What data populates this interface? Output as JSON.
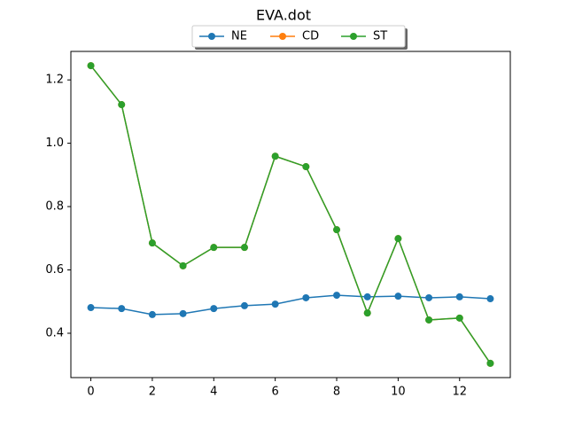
{
  "chart_data": {
    "type": "line",
    "title": "EVA.dot",
    "x": [
      0,
      1,
      2,
      3,
      4,
      5,
      6,
      7,
      8,
      9,
      10,
      11,
      12,
      13
    ],
    "series": [
      {
        "name": "NE",
        "color": "#1f77b4",
        "values": [
          0.481,
          0.478,
          0.459,
          0.462,
          0.478,
          0.487,
          0.492,
          0.512,
          0.52,
          0.515,
          0.517,
          0.512,
          0.515,
          0.509
        ]
      },
      {
        "name": "CD",
        "color": "#ff7f0e",
        "values": [
          1.245,
          1.122,
          0.685,
          0.613,
          0.671,
          0.671,
          0.959,
          0.926,
          0.727,
          0.464,
          0.699,
          0.442,
          0.448,
          0.305
        ]
      },
      {
        "name": "ST",
        "color": "#2ca02c",
        "values": [
          1.245,
          1.122,
          0.685,
          0.613,
          0.671,
          0.671,
          0.959,
          0.926,
          0.727,
          0.464,
          0.699,
          0.442,
          0.448,
          0.305
        ]
      }
    ],
    "xlim": [
      -0.65,
      13.65
    ],
    "xticks": [
      0,
      2,
      4,
      6,
      8,
      10,
      12
    ],
    "ylim": [
      0.26,
      1.29
    ],
    "yticks": [
      0.4,
      0.6,
      0.8,
      {
        "value": 1,
        "label": "1.0"
      },
      1.2
    ],
    "grid": false,
    "legend": "upper center"
  }
}
